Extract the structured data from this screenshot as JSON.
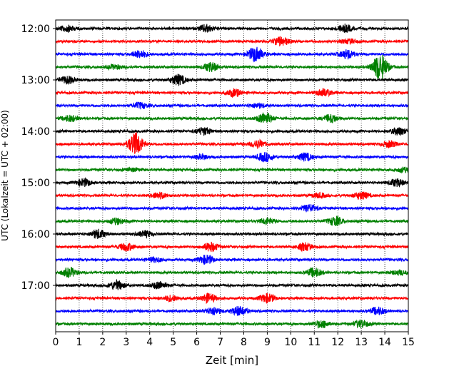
{
  "chart_data": {
    "type": "line",
    "subtype": "helicorder",
    "xlabel": "Zeit  [min]",
    "ylabel": "UTC (Lokalzeit = UTC + 02:00)",
    "xlim": [
      0,
      15
    ],
    "xticks": [
      0,
      1,
      2,
      3,
      4,
      5,
      6,
      7,
      8,
      9,
      10,
      11,
      12,
      13,
      14,
      15
    ],
    "x_grid": "dotted",
    "trace_interval_min": 15,
    "start_time": "12:00",
    "colors": [
      "#000000",
      "#ff0000",
      "#0000ff",
      "#008000"
    ],
    "yticks": [
      {
        "label": "12:00",
        "row": 0
      },
      {
        "label": "13:00",
        "row": 4
      },
      {
        "label": "14:00",
        "row": 8
      },
      {
        "label": "15:00",
        "row": 12
      },
      {
        "label": "16:00",
        "row": 16
      },
      {
        "label": "17:00",
        "row": 20
      }
    ],
    "traces": [
      {
        "start": "12:00",
        "color": "#000000",
        "events": [
          [
            0.5,
            4
          ],
          [
            6.4,
            5
          ],
          [
            12.3,
            5
          ]
        ]
      },
      {
        "start": "12:15",
        "color": "#ff0000",
        "events": [
          [
            9.6,
            6
          ],
          [
            12.5,
            3
          ]
        ]
      },
      {
        "start": "12:30",
        "color": "#0000ff",
        "events": [
          [
            3.6,
            5
          ],
          [
            8.5,
            10
          ],
          [
            12.4,
            6
          ]
        ]
      },
      {
        "start": "12:45",
        "color": "#008000",
        "events": [
          [
            2.5,
            3
          ],
          [
            6.6,
            6
          ],
          [
            13.8,
            18
          ]
        ]
      },
      {
        "start": "13:00",
        "color": "#000000",
        "events": [
          [
            0.5,
            5
          ],
          [
            5.2,
            7
          ]
        ]
      },
      {
        "start": "13:15",
        "color": "#ff0000",
        "events": [
          [
            7.6,
            5
          ],
          [
            11.4,
            5
          ]
        ]
      },
      {
        "start": "13:30",
        "color": "#0000ff",
        "events": [
          [
            3.6,
            4
          ],
          [
            8.6,
            3
          ]
        ]
      },
      {
        "start": "13:45",
        "color": "#008000",
        "events": [
          [
            0.6,
            4
          ],
          [
            8.9,
            8
          ],
          [
            11.7,
            5
          ]
        ]
      },
      {
        "start": "14:00",
        "color": "#000000",
        "events": [
          [
            6.3,
            5
          ],
          [
            14.6,
            5
          ]
        ]
      },
      {
        "start": "14:15",
        "color": "#ff0000",
        "events": [
          [
            3.4,
            15
          ],
          [
            8.6,
            5
          ],
          [
            14.2,
            4
          ]
        ]
      },
      {
        "start": "14:30",
        "color": "#0000ff",
        "events": [
          [
            6.2,
            3
          ],
          [
            8.9,
            6
          ],
          [
            10.6,
            5
          ]
        ]
      },
      {
        "start": "14:45",
        "color": "#008000",
        "events": [
          [
            3.3,
            2
          ],
          [
            14.8,
            3
          ]
        ]
      },
      {
        "start": "15:00",
        "color": "#000000",
        "events": [
          [
            1.2,
            5
          ],
          [
            14.5,
            5
          ]
        ]
      },
      {
        "start": "15:15",
        "color": "#ff0000",
        "events": [
          [
            4.4,
            4
          ],
          [
            11.2,
            3
          ],
          [
            13.0,
            5
          ]
        ]
      },
      {
        "start": "15:30",
        "color": "#0000ff",
        "events": [
          [
            10.8,
            5
          ]
        ]
      },
      {
        "start": "15:45",
        "color": "#008000",
        "events": [
          [
            2.6,
            4
          ],
          [
            9.0,
            4
          ],
          [
            11.9,
            6
          ]
        ]
      },
      {
        "start": "16:00",
        "color": "#000000",
        "events": [
          [
            1.8,
            6
          ],
          [
            3.8,
            4
          ]
        ]
      },
      {
        "start": "16:15",
        "color": "#ff0000",
        "events": [
          [
            3.0,
            5
          ],
          [
            6.6,
            6
          ],
          [
            10.6,
            5
          ]
        ]
      },
      {
        "start": "16:30",
        "color": "#0000ff",
        "events": [
          [
            4.2,
            3
          ],
          [
            6.4,
            6
          ]
        ]
      },
      {
        "start": "16:45",
        "color": "#008000",
        "events": [
          [
            0.6,
            6
          ],
          [
            11.0,
            6
          ],
          [
            14.6,
            3
          ]
        ]
      },
      {
        "start": "17:00",
        "color": "#000000",
        "events": [
          [
            2.6,
            6
          ],
          [
            4.4,
            5
          ]
        ]
      },
      {
        "start": "17:15",
        "color": "#ff0000",
        "events": [
          [
            4.9,
            4
          ],
          [
            6.5,
            6
          ],
          [
            9.0,
            6
          ]
        ]
      },
      {
        "start": "17:30",
        "color": "#0000ff",
        "events": [
          [
            6.7,
            5
          ],
          [
            7.8,
            6
          ],
          [
            13.7,
            5
          ]
        ]
      },
      {
        "start": "17:45",
        "color": "#008000",
        "events": [
          [
            11.3,
            5
          ],
          [
            13.0,
            5
          ]
        ]
      }
    ]
  }
}
